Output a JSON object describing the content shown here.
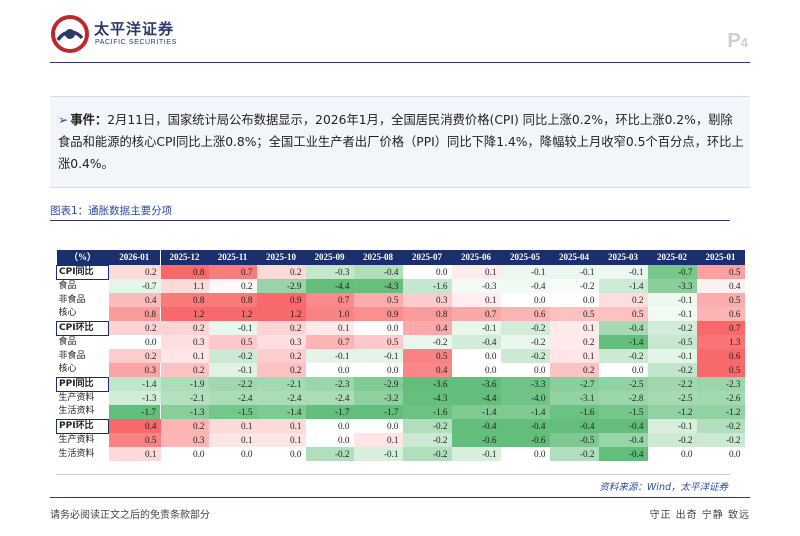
{
  "header": {
    "logo_cn": "太平洋证券",
    "logo_en": "PACIFIC SECURITIES",
    "page_prefix": "P",
    "page_number": "4"
  },
  "event": {
    "label": "事件：",
    "text": "2月11日，国家统计局公布数据显示，2026年1月，全国居民消费价格(CPI) 同比上涨0.2%，环比上涨0.2%，剔除食品和能源的核心CPI同比上涨0.8%；全国工业生产者出厂价格（PPI）同比下降1.4%，降幅较上月收窄0.5个百分点，环比上涨0.4%。"
  },
  "figure": {
    "title": "图表1：通胀数据主要分项",
    "source": "资料来源：Wind，太平洋证券"
  },
  "chart_data": {
    "type": "table",
    "unit_label": "（%）",
    "columns": [
      "2026-01",
      "2025-12",
      "2025-11",
      "2025-10",
      "2025-09",
      "2025-08",
      "2025-07",
      "2025-06",
      "2025-05",
      "2025-04",
      "2025-03",
      "2025-02",
      "2025-01"
    ],
    "rows": [
      {
        "label": "CPI同比",
        "head": true,
        "values": [
          "0.2",
          "0.8",
          "0.7",
          "0.2",
          "-0.3",
          "-0.4",
          "0.0",
          "0.1",
          "-0.1",
          "-0.1",
          "-0.1",
          "-0.7",
          "0.5"
        ]
      },
      {
        "label": "食品",
        "head": false,
        "values": [
          "-0.7",
          "1.1",
          "0.2",
          "-2.9",
          "-4.4",
          "-4.3",
          "-1.6",
          "-0.3",
          "-0.4",
          "-0.2",
          "-1.4",
          "-3.3",
          "0.4"
        ]
      },
      {
        "label": "非食品",
        "head": false,
        "values": [
          "0.4",
          "0.8",
          "0.8",
          "0.9",
          "0.7",
          "0.5",
          "0.3",
          "0.1",
          "0.0",
          "0.0",
          "0.2",
          "-0.1",
          "0.5"
        ]
      },
      {
        "label": "核心",
        "head": false,
        "values": [
          "0.8",
          "1.2",
          "1.2",
          "1.2",
          "1.0",
          "0.9",
          "0.8",
          "0.7",
          "0.6",
          "0.5",
          "0.5",
          "-0.1",
          "0.6"
        ]
      },
      {
        "label": "CPI环比",
        "head": true,
        "values": [
          "0.2",
          "0.2",
          "-0.1",
          "0.2",
          "0.1",
          "0.0",
          "0.4",
          "-0.1",
          "-0.2",
          "0.1",
          "-0.4",
          "-0.2",
          "0.7"
        ]
      },
      {
        "label": "食品",
        "head": false,
        "values": [
          "0.0",
          "0.3",
          "0.5",
          "0.3",
          "0.7",
          "0.5",
          "-0.2",
          "-0.4",
          "-0.2",
          "0.2",
          "-1.4",
          "-0.5",
          "1.3"
        ]
      },
      {
        "label": "非食品",
        "head": false,
        "values": [
          "0.2",
          "0.1",
          "-0.2",
          "0.2",
          "-0.1",
          "-0.1",
          "0.5",
          "0.0",
          "-0.2",
          "0.1",
          "-0.2",
          "-0.1",
          "0.6"
        ]
      },
      {
        "label": "核心",
        "head": false,
        "values": [
          "0.3",
          "0.2",
          "-0.1",
          "0.2",
          "0.0",
          "0.0",
          "0.4",
          "0.0",
          "0.0",
          "0.2",
          "0.0",
          "-0.2",
          "0.5"
        ]
      },
      {
        "label": "PPI同比",
        "head": true,
        "values": [
          "-1.4",
          "-1.9",
          "-2.2",
          "-2.1",
          "-2.3",
          "-2.9",
          "-3.6",
          "-3.6",
          "-3.3",
          "-2.7",
          "-2.5",
          "-2.2",
          "-2.3"
        ]
      },
      {
        "label": "生产资料",
        "head": false,
        "values": [
          "-1.3",
          "-2.1",
          "-2.4",
          "-2.4",
          "-2.4",
          "-3.2",
          "-4.3",
          "-4.4",
          "-4.0",
          "-3.1",
          "-2.8",
          "-2.5",
          "-2.6"
        ]
      },
      {
        "label": "生活资料",
        "head": false,
        "values": [
          "-1.7",
          "-1.3",
          "-1.5",
          "-1.4",
          "-1.7",
          "-1.7",
          "-1.6",
          "-1.4",
          "-1.4",
          "-1.6",
          "-1.5",
          "-1.2",
          "-1.2"
        ]
      },
      {
        "label": "PPI环比",
        "head": true,
        "values": [
          "0.4",
          "0.2",
          "0.1",
          "0.1",
          "0.0",
          "0.0",
          "-0.2",
          "-0.4",
          "-0.4",
          "-0.4",
          "-0.4",
          "-0.1",
          "-0.2"
        ]
      },
      {
        "label": "生产资料",
        "head": false,
        "values": [
          "0.5",
          "0.3",
          "0.1",
          "0.1",
          "0.0",
          "0.1",
          "-0.2",
          "-0.6",
          "-0.6",
          "-0.5",
          "-0.4",
          "-0.2",
          "-0.2"
        ]
      },
      {
        "label": "生活资料",
        "head": false,
        "values": [
          "0.1",
          "0.0",
          "0.0",
          "0.0",
          "-0.2",
          "-0.1",
          "-0.2",
          "-0.1",
          "0.0",
          "-0.2",
          "-0.4",
          "0.0",
          "0.0"
        ]
      }
    ],
    "colors": {
      "positive": "#f8696b",
      "neutral": "#ffffff",
      "negative": "#63be7b",
      "header": "#1b2f70"
    }
  },
  "footer": {
    "disclaimer": "请务必阅读正文之后的免责条款部分",
    "motto": "守正 出奇 宁静 致远"
  }
}
